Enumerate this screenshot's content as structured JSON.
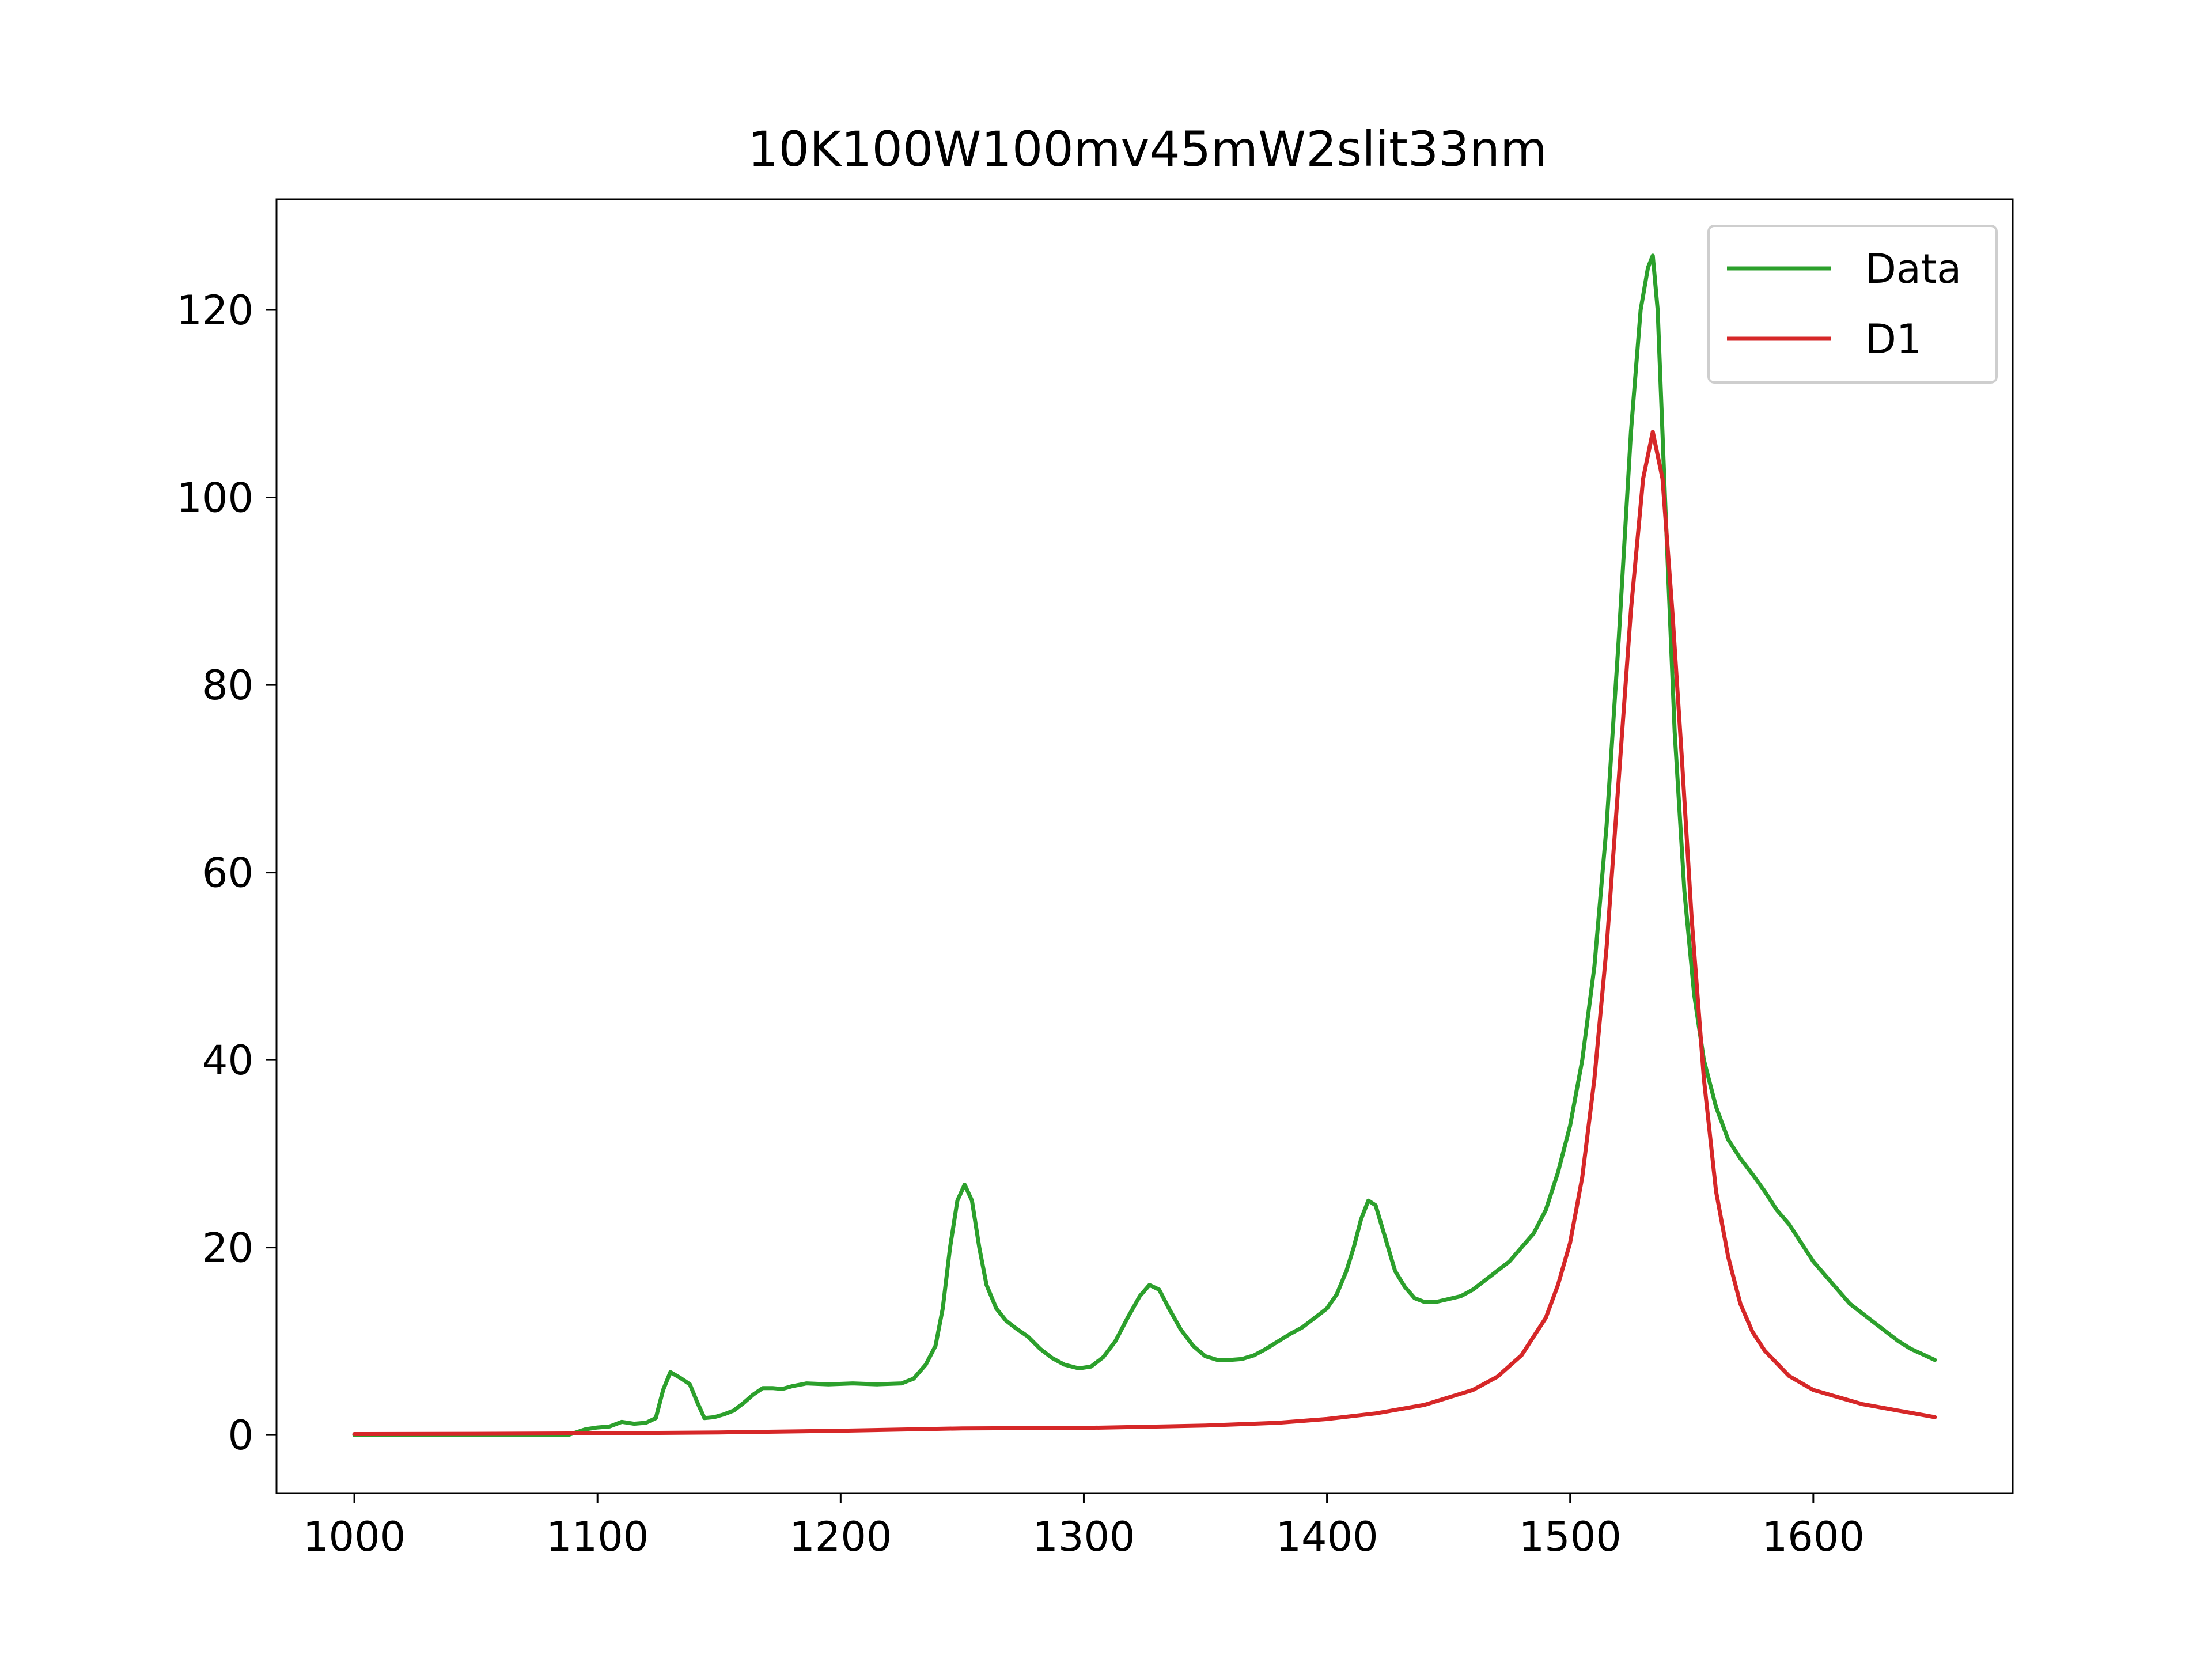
{
  "chart_data": {
    "type": "line",
    "title": "10K100W100mv45mW2slit33nm",
    "xlabel": "",
    "ylabel": "",
    "xlim": [
      968,
      1682
    ],
    "ylim": [
      -6.2,
      131.8
    ],
    "x_ticks": [
      1000,
      1100,
      1200,
      1300,
      1400,
      1500,
      1600
    ],
    "y_ticks": [
      0,
      20,
      40,
      60,
      80,
      100,
      120
    ],
    "grid": false,
    "legend": {
      "position": "top-right",
      "entries": [
        "Data",
        "D1"
      ]
    },
    "series": [
      {
        "name": "Data",
        "color": "#2ca02c",
        "points": [
          [
            1000,
            0.0
          ],
          [
            1050,
            0.0
          ],
          [
            1088,
            0.0
          ],
          [
            1095,
            0.6
          ],
          [
            1100,
            0.8
          ],
          [
            1105,
            0.9
          ],
          [
            1110,
            1.4
          ],
          [
            1115,
            1.2
          ],
          [
            1120,
            1.3
          ],
          [
            1124,
            1.8
          ],
          [
            1127,
            4.8
          ],
          [
            1130,
            6.7
          ],
          [
            1134,
            6.1
          ],
          [
            1138,
            5.4
          ],
          [
            1141,
            3.5
          ],
          [
            1144,
            1.8
          ],
          [
            1148,
            1.9
          ],
          [
            1152,
            2.2
          ],
          [
            1156,
            2.6
          ],
          [
            1160,
            3.4
          ],
          [
            1164,
            4.3
          ],
          [
            1168,
            5.0
          ],
          [
            1172,
            5.0
          ],
          [
            1176,
            4.9
          ],
          [
            1180,
            5.2
          ],
          [
            1186,
            5.5
          ],
          [
            1195,
            5.4
          ],
          [
            1205,
            5.5
          ],
          [
            1215,
            5.4
          ],
          [
            1225,
            5.5
          ],
          [
            1230,
            6.0
          ],
          [
            1235,
            7.5
          ],
          [
            1239,
            9.5
          ],
          [
            1242,
            13.5
          ],
          [
            1245,
            20.0
          ],
          [
            1248,
            25.0
          ],
          [
            1251,
            26.7
          ],
          [
            1254,
            25.0
          ],
          [
            1257,
            20.0
          ],
          [
            1260,
            16.0
          ],
          [
            1264,
            13.5
          ],
          [
            1268,
            12.2
          ],
          [
            1272,
            11.4
          ],
          [
            1277,
            10.5
          ],
          [
            1282,
            9.2
          ],
          [
            1287,
            8.2
          ],
          [
            1292,
            7.5
          ],
          [
            1298,
            7.1
          ],
          [
            1303,
            7.3
          ],
          [
            1308,
            8.3
          ],
          [
            1313,
            10.0
          ],
          [
            1318,
            12.5
          ],
          [
            1323,
            14.8
          ],
          [
            1327,
            16.0
          ],
          [
            1331,
            15.5
          ],
          [
            1335,
            13.5
          ],
          [
            1340,
            11.2
          ],
          [
            1345,
            9.5
          ],
          [
            1350,
            8.4
          ],
          [
            1355,
            8.0
          ],
          [
            1360,
            8.0
          ],
          [
            1365,
            8.1
          ],
          [
            1370,
            8.5
          ],
          [
            1375,
            9.2
          ],
          [
            1380,
            10.0
          ],
          [
            1385,
            10.8
          ],
          [
            1390,
            11.5
          ],
          [
            1395,
            12.5
          ],
          [
            1400,
            13.5
          ],
          [
            1404,
            15.0
          ],
          [
            1408,
            17.5
          ],
          [
            1411,
            20.0
          ],
          [
            1414,
            23.0
          ],
          [
            1417,
            25.0
          ],
          [
            1420,
            24.5
          ],
          [
            1424,
            21.0
          ],
          [
            1428,
            17.5
          ],
          [
            1432,
            15.8
          ],
          [
            1436,
            14.6
          ],
          [
            1440,
            14.2
          ],
          [
            1445,
            14.2
          ],
          [
            1450,
            14.5
          ],
          [
            1455,
            14.8
          ],
          [
            1460,
            15.5
          ],
          [
            1465,
            16.5
          ],
          [
            1470,
            17.5
          ],
          [
            1475,
            18.5
          ],
          [
            1480,
            20.0
          ],
          [
            1485,
            21.5
          ],
          [
            1490,
            24.0
          ],
          [
            1495,
            28.0
          ],
          [
            1500,
            33.0
          ],
          [
            1505,
            40.0
          ],
          [
            1510,
            50.0
          ],
          [
            1515,
            65.0
          ],
          [
            1520,
            85.0
          ],
          [
            1525,
            107.0
          ],
          [
            1529,
            120.0
          ],
          [
            1532,
            124.5
          ],
          [
            1534,
            125.8
          ],
          [
            1536,
            120.0
          ],
          [
            1539,
            100.0
          ],
          [
            1543,
            75.0
          ],
          [
            1547,
            58.0
          ],
          [
            1551,
            47.0
          ],
          [
            1555,
            40.0
          ],
          [
            1560,
            35.0
          ],
          [
            1565,
            31.5
          ],
          [
            1570,
            29.5
          ],
          [
            1575,
            27.8
          ],
          [
            1580,
            26.0
          ],
          [
            1585,
            24.0
          ],
          [
            1590,
            22.5
          ],
          [
            1595,
            20.5
          ],
          [
            1600,
            18.5
          ],
          [
            1605,
            17.0
          ],
          [
            1610,
            15.5
          ],
          [
            1615,
            14.0
          ],
          [
            1620,
            13.0
          ],
          [
            1625,
            12.0
          ],
          [
            1630,
            11.0
          ],
          [
            1635,
            10.0
          ],
          [
            1640,
            9.2
          ],
          [
            1645,
            8.6
          ],
          [
            1650,
            8.0
          ]
        ]
      },
      {
        "name": "D1",
        "color": "#d62728",
        "points": [
          [
            1000,
            0.1
          ],
          [
            1050,
            0.12
          ],
          [
            1100,
            0.17
          ],
          [
            1150,
            0.27
          ],
          [
            1200,
            0.45
          ],
          [
            1250,
            0.7
          ],
          [
            1300,
            0.75
          ],
          [
            1350,
            1.0
          ],
          [
            1380,
            1.3
          ],
          [
            1400,
            1.7
          ],
          [
            1420,
            2.3
          ],
          [
            1440,
            3.2
          ],
          [
            1460,
            4.8
          ],
          [
            1470,
            6.2
          ],
          [
            1480,
            8.5
          ],
          [
            1490,
            12.5
          ],
          [
            1495,
            16.0
          ],
          [
            1500,
            20.5
          ],
          [
            1505,
            27.5
          ],
          [
            1510,
            38.0
          ],
          [
            1515,
            52.0
          ],
          [
            1520,
            70.0
          ],
          [
            1525,
            88.0
          ],
          [
            1530,
            102.0
          ],
          [
            1534,
            107.0
          ],
          [
            1538,
            102.0
          ],
          [
            1542,
            88.0
          ],
          [
            1546,
            72.0
          ],
          [
            1550,
            55.0
          ],
          [
            1555,
            38.0
          ],
          [
            1560,
            26.0
          ],
          [
            1565,
            19.0
          ],
          [
            1570,
            14.0
          ],
          [
            1575,
            11.0
          ],
          [
            1580,
            9.0
          ],
          [
            1590,
            6.3
          ],
          [
            1600,
            4.8
          ],
          [
            1620,
            3.3
          ],
          [
            1650,
            1.9
          ]
        ]
      }
    ]
  }
}
